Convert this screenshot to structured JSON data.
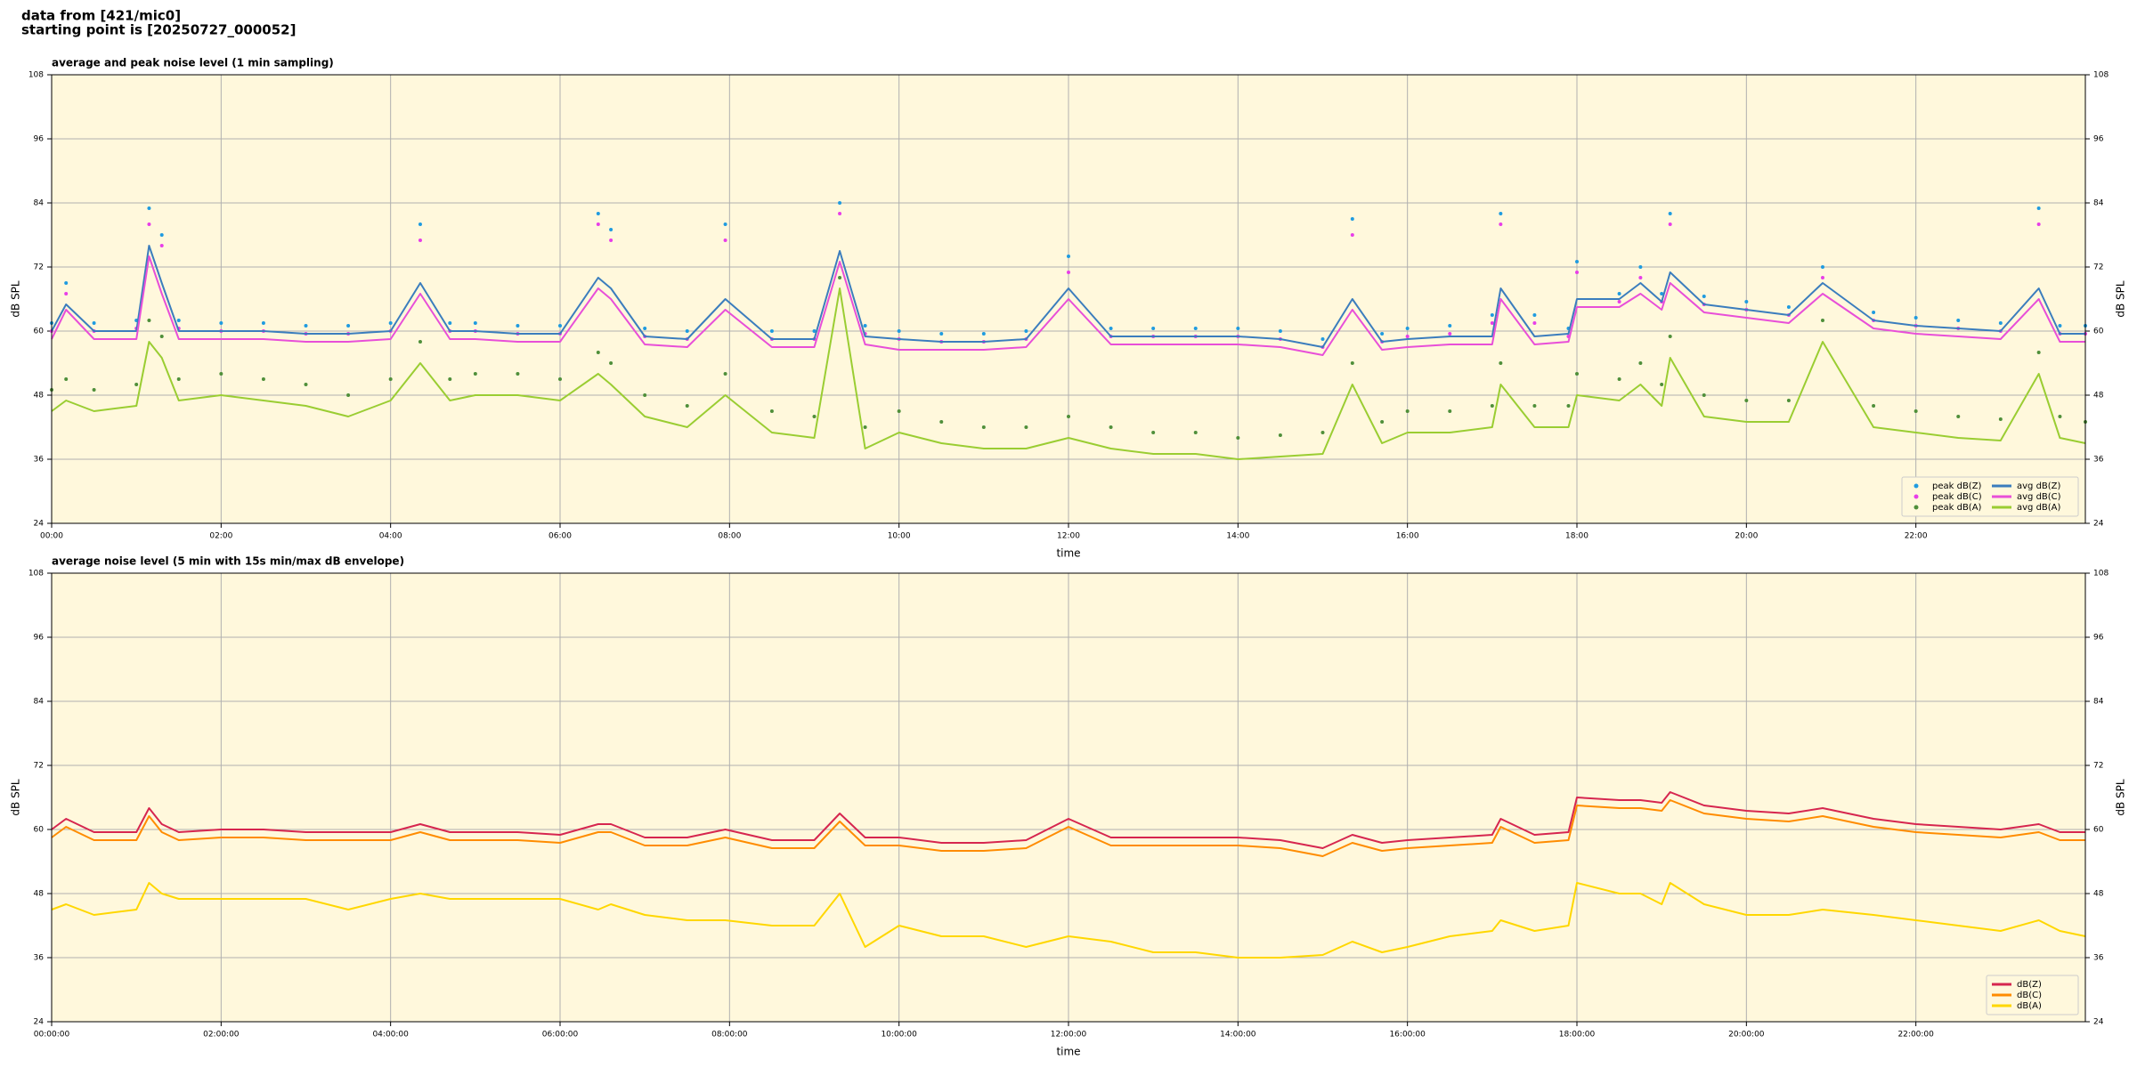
{
  "header": {
    "source": "data from [421/mic0]",
    "start": "starting point is [20250727_000052]"
  },
  "chart_data": [
    {
      "type": "line",
      "title": "average and peak noise level (1 min sampling)",
      "x_label": "time",
      "y_label": "dB SPL",
      "xlim": [
        0,
        24
      ],
      "ylim": [
        24,
        108
      ],
      "yticks": [
        24,
        36,
        48,
        60,
        72,
        84,
        96,
        108
      ],
      "xticks": [
        {
          "value": 0,
          "label": "00:00"
        },
        {
          "value": 2,
          "label": "02:00"
        },
        {
          "value": 4,
          "label": "04:00"
        },
        {
          "value": 6,
          "label": "06:00"
        },
        {
          "value": 8,
          "label": "08:00"
        },
        {
          "value": 10,
          "label": "10:00"
        },
        {
          "value": 12,
          "label": "12:00"
        },
        {
          "value": 14,
          "label": "14:00"
        },
        {
          "value": 16,
          "label": "16:00"
        },
        {
          "value": 18,
          "label": "18:00"
        },
        {
          "value": 20,
          "label": "20:00"
        },
        {
          "value": 22,
          "label": "22:00"
        }
      ],
      "grid": true,
      "legend": "lower right",
      "legend_columns": 2,
      "x": [
        0,
        0.17,
        0.5,
        1,
        1.15,
        1.3,
        1.5,
        2,
        2.5,
        3,
        3.5,
        4,
        4.35,
        4.7,
        5,
        5.5,
        6,
        6.45,
        6.6,
        7,
        7.5,
        7.95,
        8.5,
        9,
        9.3,
        9.6,
        10,
        10.5,
        11,
        11.5,
        12,
        12.5,
        13,
        13.5,
        14,
        14.5,
        15,
        15.35,
        15.7,
        16,
        16.5,
        17,
        17.1,
        17.5,
        17.9,
        18,
        18.5,
        18.75,
        19,
        19.1,
        19.5,
        20,
        20.5,
        20.9,
        21.5,
        22,
        22.5,
        23,
        23.45,
        23.7,
        24
      ],
      "series": [
        {
          "name": "peak dB(Z)",
          "style": "marker",
          "color": "#1f9be0",
          "values": [
            61.5,
            69,
            61.5,
            62,
            83,
            78,
            62,
            61.5,
            61.5,
            61,
            61,
            61.5,
            80,
            61.5,
            61.5,
            61,
            61,
            82,
            79,
            60.5,
            60,
            80,
            60,
            60,
            84,
            61,
            60,
            59.5,
            59.5,
            60,
            74,
            60.5,
            60.5,
            60.5,
            60.5,
            60,
            58.5,
            81,
            59.5,
            60.5,
            61,
            63,
            82,
            63,
            60.5,
            73,
            67,
            72,
            67,
            82,
            66.5,
            65.5,
            64.5,
            72,
            63.5,
            62.5,
            62,
            61.5,
            83,
            61,
            61
          ]
        },
        {
          "name": "peak dB(C)",
          "style": "marker",
          "color": "#e83ee8",
          "values": [
            60,
            67,
            60,
            60.5,
            80,
            76,
            60.5,
            60,
            60,
            59.5,
            59.5,
            60,
            77,
            60,
            60,
            59.5,
            59.5,
            80,
            77,
            59,
            58.5,
            77,
            58.5,
            58.5,
            82,
            59.5,
            58.5,
            58,
            58,
            58.5,
            71,
            59,
            59,
            59,
            59,
            58.5,
            57,
            78,
            58,
            59,
            59.5,
            61.5,
            80,
            61.5,
            59,
            71,
            65.5,
            70,
            65.5,
            80,
            65,
            64,
            63,
            70,
            62,
            61,
            60.5,
            60,
            80,
            59.5,
            59.5
          ]
        },
        {
          "name": "peak dB(A)",
          "style": "marker",
          "color": "#4f8f3a",
          "values": [
            49,
            51,
            49,
            50,
            62,
            59,
            51,
            52,
            51,
            50,
            48,
            51,
            58,
            51,
            52,
            52,
            51,
            56,
            54,
            48,
            46,
            52,
            45,
            44,
            70,
            42,
            45,
            43,
            42,
            42,
            44,
            42,
            41,
            41,
            40,
            40.5,
            41,
            54,
            43,
            45,
            45,
            46,
            54,
            46,
            46,
            52,
            51,
            54,
            50,
            59,
            48,
            47,
            47,
            62,
            46,
            45,
            44,
            43.5,
            56,
            44,
            43
          ]
        },
        {
          "name": "avg dB(Z)",
          "style": "line",
          "color": "#3b7dbd",
          "values": [
            60,
            65,
            60,
            60,
            76,
            69,
            60,
            60,
            60,
            59.5,
            59.5,
            60,
            69,
            60,
            60,
            59.5,
            59.5,
            70,
            68,
            59,
            58.5,
            66,
            58.5,
            58.5,
            75,
            59,
            58.5,
            58,
            58,
            58.5,
            68,
            59,
            59,
            59,
            59,
            58.5,
            57,
            66,
            58,
            58.5,
            59,
            59,
            68,
            59,
            59.5,
            66,
            66,
            69,
            65.5,
            71,
            65,
            64,
            63,
            69,
            62,
            61,
            60.5,
            60,
            68,
            59.5,
            59.5
          ]
        },
        {
          "name": "avg dB(C)",
          "style": "line",
          "color": "#e84fd8",
          "values": [
            58.5,
            64,
            58.5,
            58.5,
            74,
            67,
            58.5,
            58.5,
            58.5,
            58,
            58,
            58.5,
            67,
            58.5,
            58.5,
            58,
            58,
            68,
            66,
            57.5,
            57,
            64,
            57,
            57,
            73,
            57.5,
            56.5,
            56.5,
            56.5,
            57,
            66,
            57.5,
            57.5,
            57.5,
            57.5,
            57,
            55.5,
            64,
            56.5,
            57,
            57.5,
            57.5,
            66,
            57.5,
            58,
            64.5,
            64.5,
            67,
            64,
            69,
            63.5,
            62.5,
            61.5,
            67,
            60.5,
            59.5,
            59,
            58.5,
            66,
            58,
            58
          ]
        },
        {
          "name": "avg dB(A)",
          "style": "line",
          "color": "#9acd32",
          "values": [
            45,
            47,
            45,
            46,
            58,
            55,
            47,
            48,
            47,
            46,
            44,
            47,
            54,
            47,
            48,
            48,
            47,
            52,
            50,
            44,
            42,
            48,
            41,
            40,
            68,
            38,
            41,
            39,
            38,
            38,
            40,
            38,
            37,
            37,
            36,
            36.5,
            37,
            50,
            39,
            41,
            41,
            42,
            50,
            42,
            42,
            48,
            47,
            50,
            46,
            55,
            44,
            43,
            43,
            58,
            42,
            41,
            40,
            39.5,
            52,
            40,
            39
          ]
        }
      ]
    },
    {
      "type": "line",
      "title": "average noise level (5 min with 15s min/max dB envelope)",
      "x_label": "time",
      "y_label": "dB SPL",
      "xlim": [
        0,
        24
      ],
      "ylim": [
        24,
        108
      ],
      "yticks": [
        24,
        36,
        48,
        60,
        72,
        84,
        96,
        108
      ],
      "xticks": [
        {
          "value": 0,
          "label": "00:00:00"
        },
        {
          "value": 2,
          "label": "02:00:00"
        },
        {
          "value": 4,
          "label": "04:00:00"
        },
        {
          "value": 6,
          "label": "06:00:00"
        },
        {
          "value": 8,
          "label": "08:00:00"
        },
        {
          "value": 10,
          "label": "10:00:00"
        },
        {
          "value": 12,
          "label": "12:00:00"
        },
        {
          "value": 14,
          "label": "14:00:00"
        },
        {
          "value": 16,
          "label": "16:00:00"
        },
        {
          "value": 18,
          "label": "18:00:00"
        },
        {
          "value": 20,
          "label": "20:00:00"
        },
        {
          "value": 22,
          "label": "22:00:00"
        }
      ],
      "grid": true,
      "legend": "lower right",
      "legend_columns": 1,
      "x": [
        0,
        0.17,
        0.5,
        1,
        1.15,
        1.3,
        1.5,
        2,
        2.5,
        3,
        3.5,
        4,
        4.35,
        4.7,
        5,
        5.5,
        6,
        6.45,
        6.6,
        7,
        7.5,
        7.95,
        8.5,
        9,
        9.3,
        9.6,
        10,
        10.5,
        11,
        11.5,
        12,
        12.5,
        13,
        13.5,
        14,
        14.5,
        15,
        15.35,
        15.7,
        16,
        16.5,
        17,
        17.1,
        17.5,
        17.9,
        18,
        18.5,
        18.75,
        19,
        19.1,
        19.5,
        20,
        20.5,
        20.9,
        21.5,
        22,
        22.5,
        23,
        23.45,
        23.7,
        24
      ],
      "series": [
        {
          "name": "dB(Z)",
          "style": "line",
          "color": "#d6264f",
          "values": [
            60,
            62,
            59.5,
            59.5,
            64,
            61,
            59.5,
            60,
            60,
            59.5,
            59.5,
            59.5,
            61,
            59.5,
            59.5,
            59.5,
            59,
            61,
            61,
            58.5,
            58.5,
            60,
            58,
            58,
            63,
            58.5,
            58.5,
            57.5,
            57.5,
            58,
            62,
            58.5,
            58.5,
            58.5,
            58.5,
            58,
            56.5,
            59,
            57.5,
            58,
            58.5,
            59,
            62,
            59,
            59.5,
            66,
            65.5,
            65.5,
            65,
            67,
            64.5,
            63.5,
            63,
            64,
            62,
            61,
            60.5,
            60,
            61,
            59.5,
            59.5
          ]
        },
        {
          "name": "dB(C)",
          "style": "line",
          "color": "#ff8c00",
          "values": [
            58.5,
            60.5,
            58,
            58,
            62.5,
            59.5,
            58,
            58.5,
            58.5,
            58,
            58,
            58,
            59.5,
            58,
            58,
            58,
            57.5,
            59.5,
            59.5,
            57,
            57,
            58.5,
            56.5,
            56.5,
            61.5,
            57,
            57,
            56,
            56,
            56.5,
            60.5,
            57,
            57,
            57,
            57,
            56.5,
            55,
            57.5,
            56,
            56.5,
            57,
            57.5,
            60.5,
            57.5,
            58,
            64.5,
            64,
            64,
            63.5,
            65.5,
            63,
            62,
            61.5,
            62.5,
            60.5,
            59.5,
            59,
            58.5,
            59.5,
            58,
            58
          ]
        },
        {
          "name": "dB(A)",
          "style": "line",
          "color": "#ffd700",
          "values": [
            45,
            46,
            44,
            45,
            50,
            48,
            47,
            47,
            47,
            47,
            45,
            47,
            48,
            47,
            47,
            47,
            47,
            45,
            46,
            44,
            43,
            43,
            42,
            42,
            48,
            38,
            42,
            40,
            40,
            38,
            40,
            39,
            37,
            37,
            36,
            36,
            36.5,
            39,
            37,
            38,
            40,
            41,
            43,
            41,
            42,
            50,
            48,
            48,
            46,
            50,
            46,
            44,
            44,
            45,
            44,
            43,
            42,
            41,
            43,
            41,
            40
          ]
        }
      ]
    }
  ]
}
